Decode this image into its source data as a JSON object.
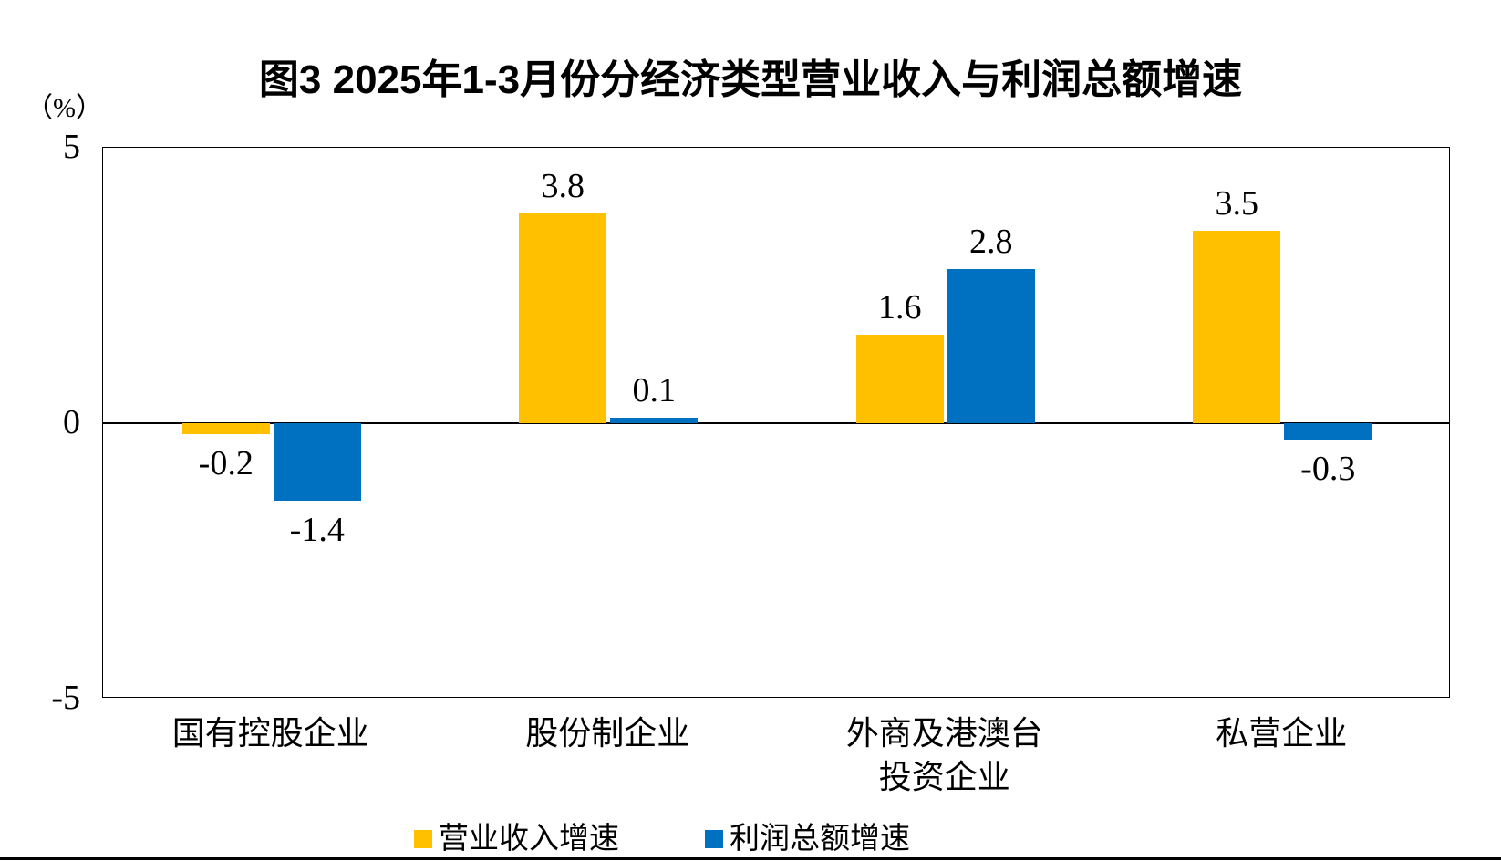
{
  "chart_data": {
    "type": "bar",
    "title": "图3 2025年1-3月份分经济类型营业收入与利润总额增速",
    "unit_label": "（%）",
    "categories": [
      "国有控股企业",
      "股份制企业",
      "外商及港澳台\n投资企业",
      "私营企业"
    ],
    "series": [
      {
        "name": "营业收入增速",
        "color": "#FFC000",
        "values": [
          -0.2,
          3.8,
          1.6,
          3.5
        ],
        "value_labels": [
          "-0.2",
          "3.8",
          "1.6",
          "3.5"
        ]
      },
      {
        "name": "利润总额增速",
        "color": "#0070C0",
        "values": [
          -1.4,
          0.1,
          2.8,
          -0.3
        ],
        "value_labels": [
          "-1.4",
          "0.1",
          "2.8",
          "-0.3"
        ]
      }
    ],
    "ylim": [
      -5,
      5
    ],
    "yticks": [
      5,
      0,
      -5
    ],
    "grid": false,
    "legend_position": "bottom",
    "axis_color": "#000000",
    "background_color": "#FFFFFF"
  }
}
